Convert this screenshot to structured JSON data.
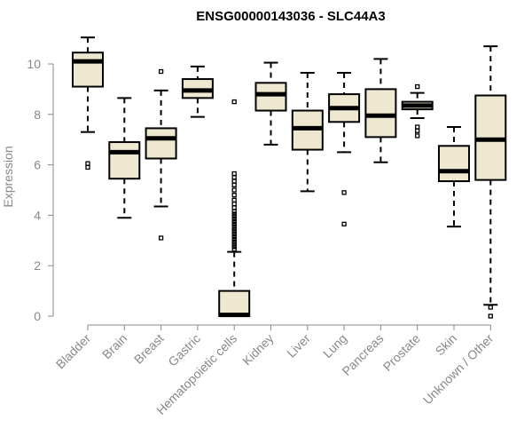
{
  "chart_data": {
    "type": "boxplot",
    "title": "ENSG00000143036 - SLC44A3",
    "xlabel": "",
    "ylabel": "Expression",
    "ylim": [
      0,
      10.5
    ],
    "yticks": [
      0,
      2,
      4,
      6,
      8,
      10
    ],
    "box_fill": "#efe8d0",
    "outline": "#000000",
    "axis_color": "#888888",
    "series": [
      {
        "name": "Bladder",
        "whisker_low": 7.3,
        "q1": 9.1,
        "median": 10.1,
        "q3": 10.45,
        "whisker_high": 11.05,
        "outliers": [
          5.9,
          6.05
        ]
      },
      {
        "name": "Brain",
        "whisker_low": 3.9,
        "q1": 5.45,
        "median": 6.5,
        "q3": 6.9,
        "whisker_high": 8.65,
        "outliers": []
      },
      {
        "name": "Breast",
        "whisker_low": 4.35,
        "q1": 6.25,
        "median": 7.05,
        "q3": 7.45,
        "whisker_high": 8.95,
        "outliers": [
          3.1,
          9.7
        ]
      },
      {
        "name": "Gastric",
        "whisker_low": 7.9,
        "q1": 8.65,
        "median": 8.95,
        "q3": 9.4,
        "whisker_high": 9.9,
        "outliers": []
      },
      {
        "name": "Hematopoietic cells",
        "whisker_low": 0.0,
        "q1": 0.0,
        "median": 0.05,
        "q3": 1.0,
        "whisker_high": 2.55,
        "outliers": [
          2.65,
          2.75,
          2.85,
          2.95,
          3.05,
          3.15,
          3.25,
          3.35,
          3.45,
          3.55,
          3.65,
          3.75,
          3.85,
          3.95,
          4.05,
          4.15,
          4.3,
          4.45,
          4.6,
          4.8,
          5.0,
          5.2,
          5.35,
          5.5,
          5.65,
          8.5
        ]
      },
      {
        "name": "Kidney",
        "whisker_low": 6.8,
        "q1": 8.15,
        "median": 8.8,
        "q3": 9.25,
        "whisker_high": 10.05,
        "outliers": []
      },
      {
        "name": "Liver",
        "whisker_low": 4.95,
        "q1": 6.6,
        "median": 7.45,
        "q3": 8.15,
        "whisker_high": 9.65,
        "outliers": []
      },
      {
        "name": "Lung",
        "whisker_low": 6.5,
        "q1": 7.7,
        "median": 8.25,
        "q3": 8.8,
        "whisker_high": 9.65,
        "outliers": [
          4.9,
          3.65
        ]
      },
      {
        "name": "Pancreas",
        "whisker_low": 6.1,
        "q1": 7.1,
        "median": 7.95,
        "q3": 9.0,
        "whisker_high": 10.2,
        "outliers": []
      },
      {
        "name": "Prostate",
        "whisker_low": 7.85,
        "q1": 8.2,
        "median": 8.35,
        "q3": 8.5,
        "whisker_high": 8.85,
        "outliers": [
          7.15,
          7.35,
          7.5,
          9.1
        ]
      },
      {
        "name": "Skin",
        "whisker_low": 3.55,
        "q1": 5.35,
        "median": 5.75,
        "q3": 6.75,
        "whisker_high": 7.5,
        "outliers": []
      },
      {
        "name": "Unknown / Other",
        "whisker_low": 0.45,
        "q1": 5.4,
        "median": 7.0,
        "q3": 8.75,
        "whisker_high": 10.7,
        "outliers": [
          0.35,
          0.0
        ]
      }
    ]
  }
}
